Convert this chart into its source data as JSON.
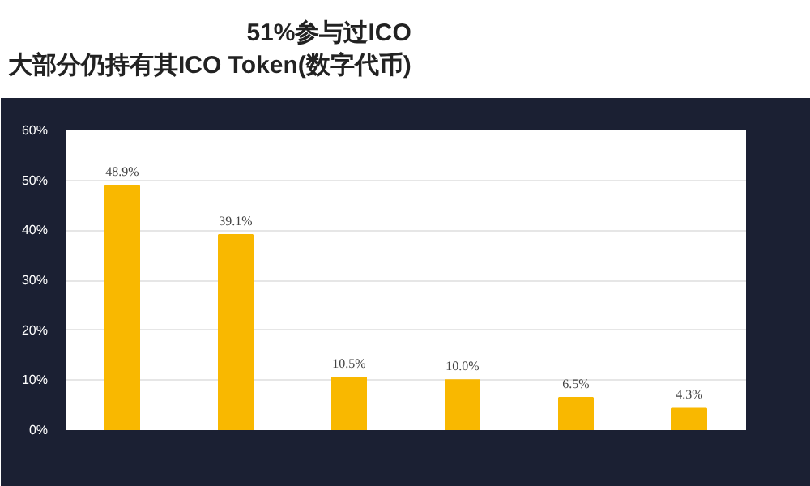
{
  "chart_data": {
    "type": "bar",
    "title": "51%参与过ICO",
    "subtitle": "大部分仍持有其ICO Token(数字代币)",
    "categories": [
      null,
      null,
      null,
      null,
      null,
      null
    ],
    "values": [
      48.9,
      39.1,
      10.5,
      10.0,
      6.5,
      4.3
    ],
    "value_labels": [
      "48.9%",
      "39.1%",
      "10.5%",
      "10.0%",
      "6.5%",
      "4.3%"
    ],
    "color": "#f9b800",
    "ylim": [
      0,
      60
    ],
    "yticks": [
      {
        "value": 0,
        "label": "0%"
      },
      {
        "value": 10,
        "label": "10%"
      },
      {
        "value": 20,
        "label": "20%"
      },
      {
        "value": 30,
        "label": "30%"
      },
      {
        "value": 40,
        "label": "40%"
      },
      {
        "value": 50,
        "label": "50%"
      },
      {
        "value": 60,
        "label": "60%"
      }
    ],
    "grid": "y"
  }
}
